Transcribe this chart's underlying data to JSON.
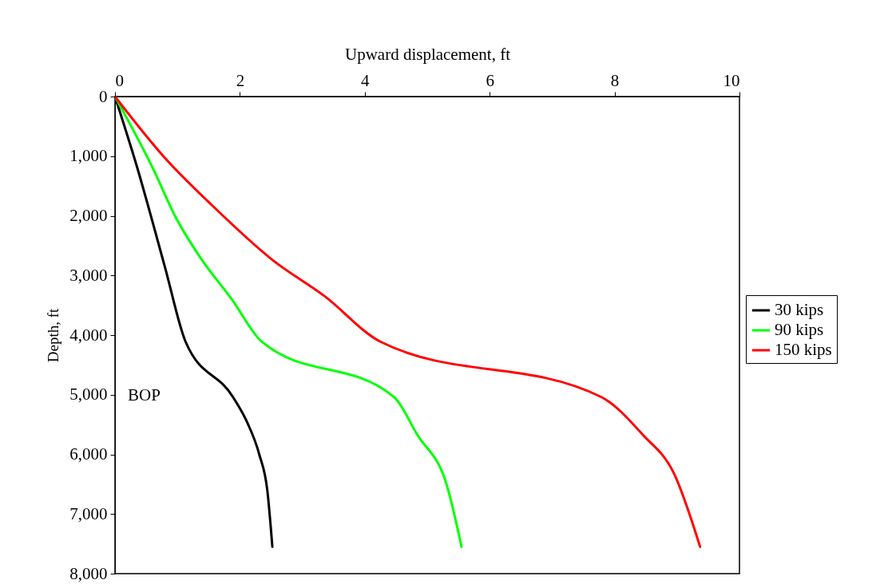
{
  "chart_data": {
    "type": "line",
    "xlabel": "Upward displacement, ft",
    "ylabel": "Depth, ft",
    "xlim": [
      0,
      10
    ],
    "xticks": [
      0,
      2,
      4,
      6,
      8,
      10
    ],
    "ylim": [
      8000,
      0
    ],
    "yticks": [
      {
        "value": 0,
        "label": "0"
      },
      {
        "value": 1000,
        "label": "1,000"
      },
      {
        "value": 2000,
        "label": "2,000"
      },
      {
        "value": 3000,
        "label": "3,000"
      },
      {
        "value": 4000,
        "label": "4,000"
      },
      {
        "value": 5000,
        "label": "5,000"
      },
      {
        "value": 6000,
        "label": "6,000"
      },
      {
        "value": 7000,
        "label": "7,000"
      },
      {
        "value": 8000,
        "label": "8,000"
      }
    ],
    "grid": false,
    "legend": "right",
    "marker": "none",
    "line_style": "solid",
    "annotations": [
      "BOP"
    ],
    "series": [
      {
        "name": "30 kips",
        "color": "#000000",
        "x": [
          0,
          0.35,
          0.8,
          1.13,
          1.89,
          2.12,
          2.31,
          2.44,
          2.52
        ],
        "values": [
          0,
          1170,
          2860,
          4110,
          5040,
          5470,
          6000,
          6610,
          7550
        ]
      },
      {
        "name": "90 kips",
        "color": "#00ff00",
        "x": [
          0,
          0.61,
          0.97,
          1.36,
          1.87,
          2.35,
          4.47,
          4.84,
          5.32,
          5.55
        ],
        "values": [
          0,
          1210,
          2020,
          2690,
          3400,
          4110,
          5040,
          5670,
          6540,
          7550
        ]
      },
      {
        "name": "150 kips",
        "color": "#ff0000",
        "x": [
          0,
          0.8,
          1.57,
          2.51,
          3.36,
          4.25,
          7.79,
          8.45,
          8.96,
          9.37
        ],
        "values": [
          0,
          1030,
          1840,
          2730,
          3350,
          4110,
          5040,
          5670,
          6340,
          7550
        ]
      }
    ]
  }
}
